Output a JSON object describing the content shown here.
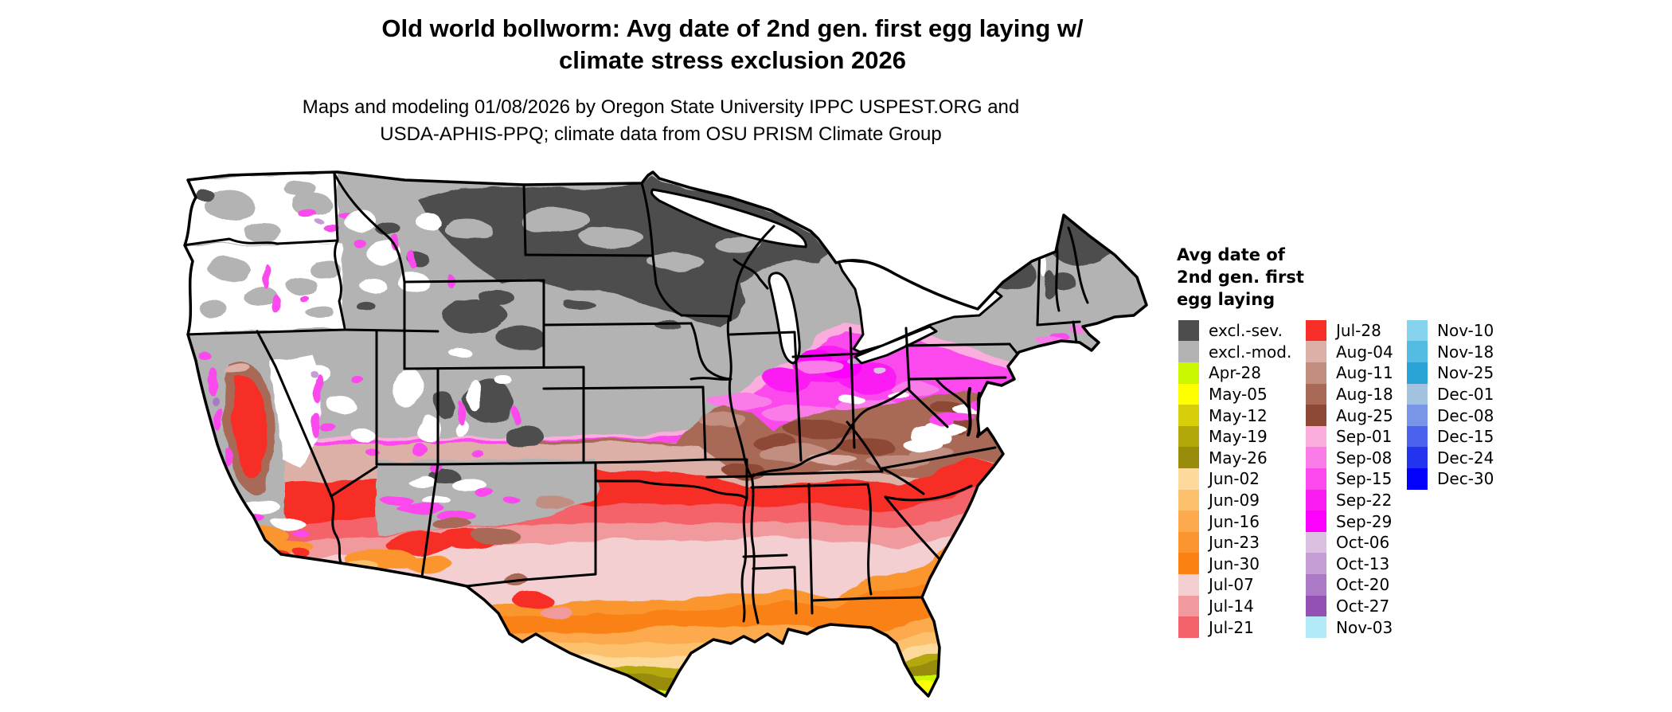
{
  "header": {
    "title_line1": "Old world bollworm: Avg date of 2nd gen. first egg laying w/",
    "title_line2": "climate stress exclusion 2026",
    "subtitle_line1": "Maps and modeling 01/08/2026 by Oregon State University IPPC USPEST.ORG and",
    "subtitle_line2": "USDA-APHIS-PPQ; climate data from OSU PRISM Climate Group"
  },
  "legend": {
    "title": "Avg date of 2nd gen. first egg laying",
    "columns": [
      [
        {
          "label": "excl.-sev.",
          "color": "#4d4d4d"
        },
        {
          "label": "excl.-mod.",
          "color": "#b3b3b3"
        },
        {
          "label": "Apr-28",
          "color": "#c8f700"
        },
        {
          "label": "May-05",
          "color": "#ffff00"
        },
        {
          "label": "May-12",
          "color": "#d8cf0b"
        },
        {
          "label": "May-19",
          "color": "#b3a80a"
        },
        {
          "label": "May-26",
          "color": "#998c0a"
        },
        {
          "label": "Jun-02",
          "color": "#fdda9c"
        },
        {
          "label": "Jun-09",
          "color": "#fdc06c"
        },
        {
          "label": "Jun-16",
          "color": "#fcaa4d"
        },
        {
          "label": "Jun-23",
          "color": "#fb952f"
        },
        {
          "label": "Jun-30",
          "color": "#fa8112"
        },
        {
          "label": "Jul-07",
          "color": "#f4cfd1"
        },
        {
          "label": "Jul-14",
          "color": "#f19a9e"
        },
        {
          "label": "Jul-21",
          "color": "#f4626b"
        }
      ],
      [
        {
          "label": "Jul-28",
          "color": "#f72f28"
        },
        {
          "label": "Aug-04",
          "color": "#dcb0a7"
        },
        {
          "label": "Aug-11",
          "color": "#c18e7f"
        },
        {
          "label": "Aug-18",
          "color": "#a86956"
        },
        {
          "label": "Aug-25",
          "color": "#8d4836"
        },
        {
          "label": "Sep-01",
          "color": "#fbaddd"
        },
        {
          "label": "Sep-08",
          "color": "#fa7ce9"
        },
        {
          "label": "Sep-15",
          "color": "#fb49ee"
        },
        {
          "label": "Sep-22",
          "color": "#fa1cf3"
        },
        {
          "label": "Sep-29",
          "color": "#fe00fd"
        },
        {
          "label": "Oct-06",
          "color": "#dbc0e2"
        },
        {
          "label": "Oct-13",
          "color": "#c39dd4"
        },
        {
          "label": "Oct-20",
          "color": "#ac79c6"
        },
        {
          "label": "Oct-27",
          "color": "#9451b4"
        },
        {
          "label": "Nov-03",
          "color": "#b2ebf7"
        }
      ],
      [
        {
          "label": "Nov-10",
          "color": "#86d3ee"
        },
        {
          "label": "Nov-18",
          "color": "#54bbe3"
        },
        {
          "label": "Nov-25",
          "color": "#2aa3d7"
        },
        {
          "label": "Dec-01",
          "color": "#a2c2e0"
        },
        {
          "label": "Dec-08",
          "color": "#7995e7"
        },
        {
          "label": "Dec-15",
          "color": "#4a62ed"
        },
        {
          "label": "Dec-24",
          "color": "#2334f1"
        },
        {
          "label": "Dec-30",
          "color": "#0301fa"
        }
      ]
    ]
  },
  "map": {
    "background": "#ffffff",
    "border_color": "#000000",
    "palette": {
      "white": "#ffffff",
      "black": "#000000",
      "excl_sev": "#4d4d4d",
      "excl_mod": "#b3b3b3",
      "apr28": "#c8f700",
      "may05": "#ffff00",
      "may12": "#d8cf0b",
      "may19": "#b3a80a",
      "may26": "#998c0a",
      "jun02": "#fdda9c",
      "jun09": "#fdc06c",
      "jun16": "#fcaa4d",
      "jun23": "#fb952f",
      "jun30": "#fa8112",
      "jul07": "#f4cfd1",
      "jul14": "#f19a9e",
      "jul21": "#f4626b",
      "jul28": "#f72f28",
      "aug04": "#dcb0a7",
      "aug11": "#c18e7f",
      "aug18": "#a86956",
      "aug25": "#8d4836",
      "sep01": "#fbaddd",
      "sep08": "#fa7ce9",
      "sep15": "#fb49ee",
      "sep22": "#fa1cf3",
      "sep29": "#fe00fd",
      "oct06": "#dbc0e2",
      "oct13": "#c39dd4",
      "oct20": "#ac79c6",
      "oct27": "#9451b4",
      "nov03": "#b2ebf7"
    }
  }
}
